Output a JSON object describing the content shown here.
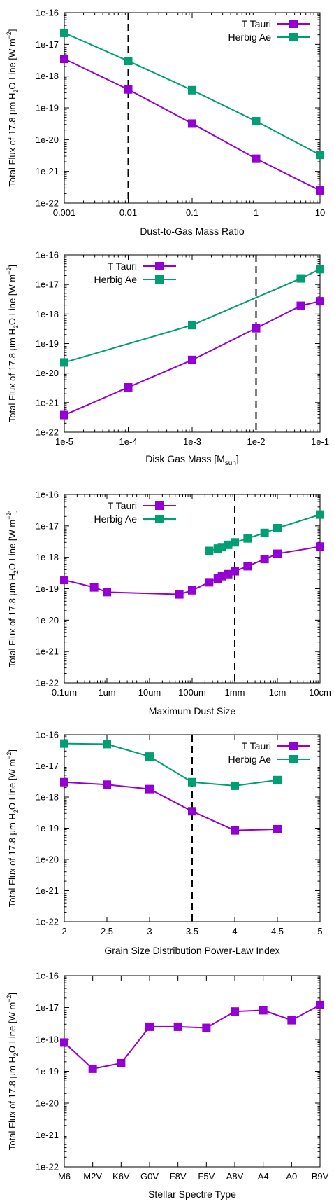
{
  "colors": {
    "ttauri": "#9400d3",
    "herbig": "#009e73",
    "axis": "#000000"
  },
  "y_axis_label": {
    "pre": "Total Flux of 17.8 ",
    "mu": "μ",
    "m": "m H",
    "sub2": "2",
    "o_line": "O Line  [W m",
    "sup": "−2",
    "close": "]"
  },
  "chart_data": [
    {
      "id": "p1",
      "type": "line",
      "xscale": "log",
      "yscale": "log",
      "xlim": [
        0.001,
        10
      ],
      "ylim": [
        1e-22,
        1e-16
      ],
      "xticks": [
        0.001,
        0.01,
        0.1,
        1,
        10
      ],
      "xtick_labels": [
        "0.001",
        "0.01",
        "0.1",
        "1",
        "10"
      ],
      "yticks": [
        1e-22,
        1e-21,
        1e-20,
        1e-19,
        1e-18,
        1e-17,
        1e-16
      ],
      "ytick_labels": [
        "1e-22",
        "1e-21",
        "1e-20",
        "1e-19",
        "1e-18",
        "1e-17",
        "1e-16"
      ],
      "xlabel": "Dust-to-Gas Mass Ratio",
      "legend_position": "top-right",
      "vline": 0.01,
      "series": [
        {
          "name": "T Tauri",
          "color_key": "ttauri",
          "x": [
            0.001,
            0.01,
            0.1,
            1,
            10
          ],
          "y": [
            3.5e-18,
            3.8e-19,
            3.2e-20,
            2.5e-21,
            2.5e-22
          ]
        },
        {
          "name": "Herbig Ae",
          "color_key": "herbig",
          "x": [
            0.001,
            0.01,
            0.1,
            1,
            10
          ],
          "y": [
            2.3e-17,
            3e-18,
            3.6e-19,
            3.8e-20,
            3.3e-21
          ]
        }
      ]
    },
    {
      "id": "p2",
      "type": "line",
      "xscale": "log",
      "yscale": "log",
      "xlim": [
        1e-05,
        0.1
      ],
      "ylim": [
        1e-22,
        1e-16
      ],
      "xticks": [
        1e-05,
        0.0001,
        0.001,
        0.01,
        0.1
      ],
      "xtick_labels": [
        "1e-5",
        "1e-4",
        "1e-3",
        "1e-2",
        "1e-1"
      ],
      "yticks": [
        1e-22,
        1e-21,
        1e-20,
        1e-19,
        1e-18,
        1e-17,
        1e-16
      ],
      "ytick_labels": [
        "1e-22",
        "1e-21",
        "1e-20",
        "1e-19",
        "1e-18",
        "1e-17",
        "1e-16"
      ],
      "xlabel": "Disk Gas Mass [M",
      "xlabel_sub": "sun",
      "xlabel_end": "]",
      "legend_position": "top-left",
      "vline": 0.01,
      "series": [
        {
          "name": "T Tauri",
          "color_key": "ttauri",
          "x": [
            1e-05,
            0.0001,
            0.001,
            0.01,
            0.05,
            0.1
          ],
          "y": [
            3.8e-22,
            3.3e-21,
            2.8e-20,
            3.3e-19,
            1.9e-18,
            2.7e-18
          ]
        },
        {
          "name": "Herbig Ae",
          "color_key": "herbig",
          "x": [
            1e-05,
            0.001,
            0.05,
            0.1
          ],
          "y": [
            2.3e-20,
            4.2e-19,
            1.6e-17,
            3.3e-17
          ]
        }
      ]
    },
    {
      "id": "p3",
      "type": "line",
      "xscale": "log",
      "yscale": "log",
      "xlim": [
        0.1,
        100000
      ],
      "ylim": [
        1e-22,
        1e-16
      ],
      "xticks": [
        0.1,
        1,
        10,
        100,
        1000,
        10000,
        100000
      ],
      "xtick_labels": [
        "0.1um",
        "1um",
        "10um",
        "100um",
        "1mm",
        "1cm",
        "10cm"
      ],
      "yticks": [
        1e-22,
        1e-21,
        1e-20,
        1e-19,
        1e-18,
        1e-17,
        1e-16
      ],
      "ytick_labels": [
        "1e-22",
        "1e-21",
        "1e-20",
        "1e-19",
        "1e-18",
        "1e-17",
        "1e-16"
      ],
      "xlabel": "Maximum Dust Size",
      "legend_position": "top-left",
      "vline": 1000,
      "series": [
        {
          "name": "T Tauri",
          "color_key": "ttauri",
          "x": [
            0.1,
            0.5,
            1,
            50,
            100,
            250,
            400,
            500,
            700,
            1000,
            2000,
            5000,
            10000,
            100000
          ],
          "y": [
            1.9e-19,
            1.1e-19,
            7.8e-20,
            6.6e-20,
            8.9e-20,
            1.6e-19,
            2.1e-19,
            2.5e-19,
            2.9e-19,
            3.6e-19,
            5.2e-19,
            8.8e-19,
            1.3e-18,
            2.2e-18
          ]
        },
        {
          "name": "Herbig Ae",
          "color_key": "herbig",
          "x": [
            250,
            400,
            500,
            700,
            1000,
            2000,
            5000,
            10000,
            100000
          ],
          "y": [
            1.6e-18,
            1.9e-18,
            2.1e-18,
            2.5e-18,
            3e-18,
            4e-18,
            6e-18,
            8.5e-18,
            2.3e-17
          ]
        }
      ]
    },
    {
      "id": "p4",
      "type": "line",
      "xscale": "linear",
      "yscale": "log",
      "xlim": [
        2,
        5
      ],
      "ylim": [
        1e-22,
        1e-16
      ],
      "xticks": [
        2,
        2.5,
        3,
        3.5,
        4,
        4.5,
        5
      ],
      "xtick_labels": [
        "2",
        "2.5",
        "3",
        "3.5",
        "4",
        "4.5",
        "5"
      ],
      "yticks": [
        1e-22,
        1e-21,
        1e-20,
        1e-19,
        1e-18,
        1e-17,
        1e-16
      ],
      "ytick_labels": [
        "1e-22",
        "1e-21",
        "1e-20",
        "1e-19",
        "1e-18",
        "1e-17",
        "1e-16"
      ],
      "xlabel": "Grain Size Distribution Power-Law Index",
      "legend_position": "top-right",
      "vline": 3.5,
      "series": [
        {
          "name": "T Tauri",
          "color_key": "ttauri",
          "x": [
            2,
            2.5,
            3,
            3.5,
            4,
            4.5
          ],
          "y": [
            3e-18,
            2.5e-18,
            1.8e-18,
            3.5e-19,
            8.5e-20,
            9.3e-20
          ]
        },
        {
          "name": "Herbig Ae",
          "color_key": "herbig",
          "x": [
            2,
            2.5,
            3,
            3.5,
            4,
            4.5
          ],
          "y": [
            5.2e-17,
            5e-17,
            2e-17,
            3e-18,
            2.3e-18,
            3.5e-18
          ]
        }
      ]
    },
    {
      "id": "p5",
      "type": "line",
      "xscale": "category",
      "yscale": "log",
      "ylim": [
        1e-22,
        1e-16
      ],
      "categories": [
        "M6",
        "M2V",
        "K6V",
        "G0V",
        "F8V",
        "F5V",
        "A8V",
        "A4",
        "A0",
        "B9V"
      ],
      "yticks": [
        1e-22,
        1e-21,
        1e-20,
        1e-19,
        1e-18,
        1e-17,
        1e-16
      ],
      "ytick_labels": [
        "1e-22",
        "1e-21",
        "1e-20",
        "1e-19",
        "1e-18",
        "1e-17",
        "1e-16"
      ],
      "xlabel": "Stellar Spectre Type",
      "series": [
        {
          "color_key": "ttauri",
          "y": [
            8e-19,
            1.2e-19,
            1.8e-19,
            2.5e-18,
            2.5e-18,
            2.3e-18,
            7.5e-18,
            8.2e-18,
            4e-18,
            1.2e-17
          ]
        }
      ]
    }
  ]
}
